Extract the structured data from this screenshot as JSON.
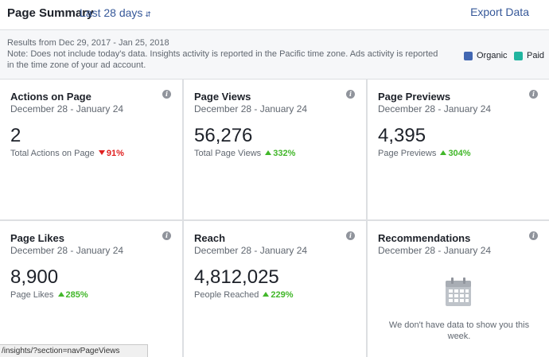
{
  "header": {
    "title": "Page Summary",
    "range_label": "Last 28 days",
    "export_label": "Export Data"
  },
  "notice": {
    "results_prefix": "Results from ",
    "results_range": "Dec 29, 2017 - Jan 25, 2018",
    "note": "Note: Does not include today's data. Insights activity is reported in the Pacific time zone. Ads activity is reported in the time zone of your ad account."
  },
  "legend": [
    {
      "label": "Organic",
      "color": "#4267b2"
    },
    {
      "label": "Paid",
      "color": "#22b5a0"
    }
  ],
  "cards": [
    {
      "title": "Actions on Page",
      "date": "December 28 - January 24",
      "value": "2",
      "sub_label": "Total Actions on Page",
      "change": "91%",
      "direction": "down"
    },
    {
      "title": "Page Views",
      "date": "December 28 - January 24",
      "value": "56,276",
      "sub_label": "Total Page Views",
      "change": "332%",
      "direction": "up"
    },
    {
      "title": "Page Previews",
      "date": "December 28 - January 24",
      "value": "4,395",
      "sub_label": "Page Previews",
      "change": "304%",
      "direction": "up"
    },
    {
      "title": "Page Likes",
      "date": "December 28 - January 24",
      "value": "8,900",
      "sub_label": "Page Likes",
      "change": "285%",
      "direction": "up"
    },
    {
      "title": "Reach",
      "date": "December 28 - January 24",
      "value": "4,812,025",
      "sub_label": "People Reached",
      "change": "229%",
      "direction": "up"
    },
    {
      "title": "Recommendations",
      "date": "December 28 - January 24",
      "empty_message": "We don't have data to show you this week."
    }
  ],
  "status_bar": {
    "url": "/insights/?section=navPageViews"
  }
}
